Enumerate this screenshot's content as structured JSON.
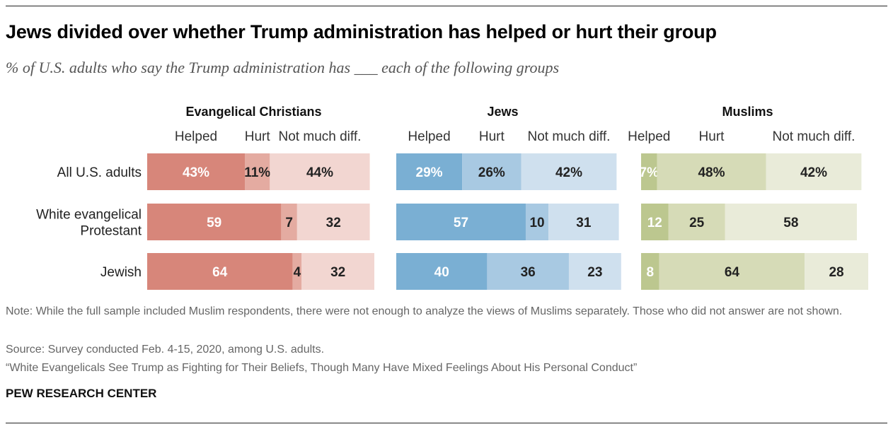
{
  "header": {
    "title": "Jews divided over whether Trump administration has helped or hurt their group",
    "subtitle": "% of U.S. adults who say the Trump administration has ___ each of the following groups"
  },
  "footer": {
    "note": "Note: While the full sample included Muslim respondents, there were not enough to analyze the views of Muslims separately. Those who did not answer are not shown.",
    "source": "Source: Survey conducted Feb. 4-15, 2020, among U.S. adults.",
    "report": "“White Evangelicals See Trump as Fighting for Their Beliefs, Though Many Have Mixed Feelings About His Personal Conduct”",
    "brand": "PEW RESEARCH CENTER"
  },
  "chart_data": {
    "type": "bar",
    "orientation": "horizontal",
    "stacked": true,
    "categories": [
      "All U.S. adults",
      "White evangelical\nProtestant",
      "Jewish"
    ],
    "segment_labels": [
      "Helped",
      "Hurt",
      "Not much diff."
    ],
    "panels": [
      {
        "name": "Evangelical Christians",
        "colors": [
          "#d7867a",
          "#e4aba1",
          "#f2d6d1"
        ],
        "series": [
          {
            "name": "Helped",
            "values": [
              43,
              59,
              64
            ]
          },
          {
            "name": "Hurt",
            "values": [
              11,
              7,
              4
            ]
          },
          {
            "name": "Not much diff.",
            "values": [
              44,
              32,
              32
            ]
          }
        ]
      },
      {
        "name": "Jews",
        "colors": [
          "#7aafd3",
          "#a8c9e2",
          "#cfe0ee"
        ],
        "series": [
          {
            "name": "Helped",
            "values": [
              29,
              57,
              40
            ]
          },
          {
            "name": "Hurt",
            "values": [
              26,
              10,
              36
            ]
          },
          {
            "name": "Not much diff.",
            "values": [
              42,
              31,
              23
            ]
          }
        ]
      },
      {
        "name": "Muslims",
        "colors": [
          "#bcc78f",
          "#d6dbb7",
          "#e9ebd9"
        ],
        "series": [
          {
            "name": "Helped",
            "values": [
              7,
              12,
              8
            ]
          },
          {
            "name": "Hurt",
            "values": [
              48,
              25,
              64
            ]
          },
          {
            "name": "Not much diff.",
            "values": [
              42,
              58,
              28
            ]
          }
        ]
      }
    ],
    "value_label_first_row_suffix": "%",
    "label_colors": {
      "light": "#ffffff",
      "dark": "#222222"
    }
  }
}
